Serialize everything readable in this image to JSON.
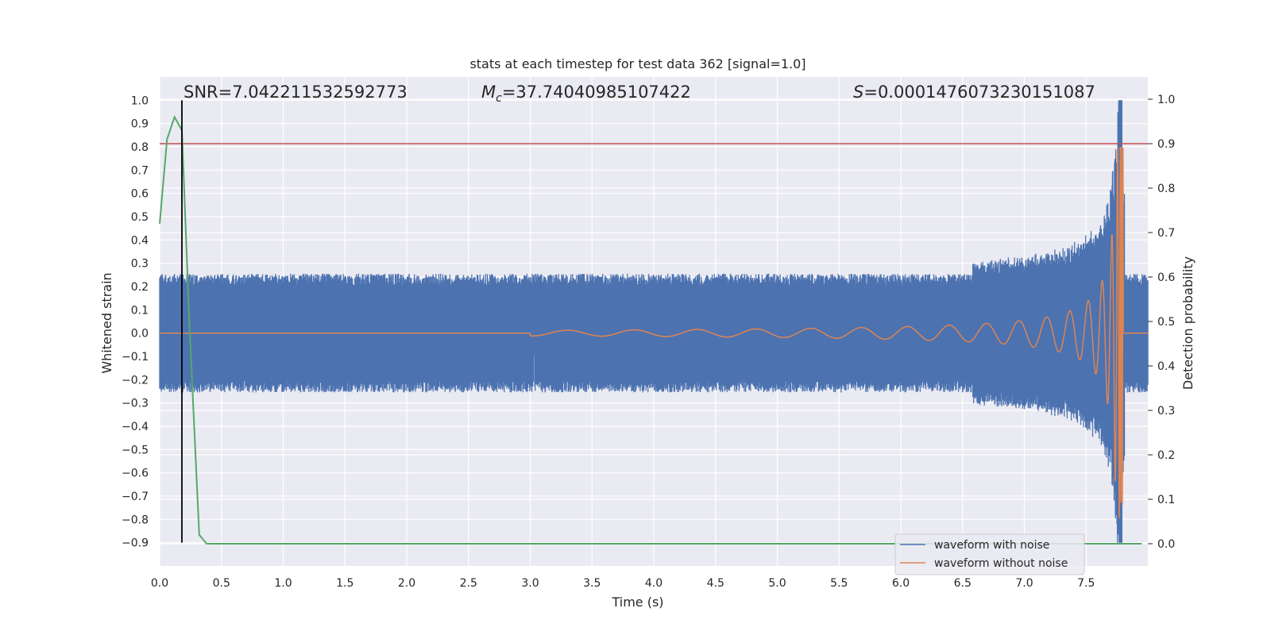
{
  "chart_data": {
    "type": "line",
    "title": "stats at each timestep for test data 362 [signal=1.0]",
    "xlabel": "Time (s)",
    "ylabel": "Whitened strain",
    "ylabel_right": "Detection probability",
    "xlim": [
      0.0,
      8.0
    ],
    "ylim": [
      -1.0,
      1.1
    ],
    "ylim_right": [
      -0.05,
      1.05
    ],
    "x_ticks": [
      "0.0",
      "0.5",
      "1.0",
      "1.5",
      "2.0",
      "2.5",
      "3.0",
      "3.5",
      "4.0",
      "4.5",
      "5.0",
      "5.5",
      "6.0",
      "6.5",
      "7.0",
      "7.5"
    ],
    "y_ticks": [
      "1.0",
      "0.9",
      "0.8",
      "0.7",
      "0.6",
      "0.5",
      "0.4",
      "0.3",
      "0.2",
      "0.1",
      "0.0",
      "−0.1",
      "−0.2",
      "−0.3",
      "−0.4",
      "−0.5",
      "−0.6",
      "−0.7",
      "−0.8",
      "−0.9"
    ],
    "y_ticks_right": [
      "1.0",
      "0.9",
      "0.8",
      "0.7",
      "0.6",
      "0.5",
      "0.4",
      "0.3",
      "0.2",
      "0.1",
      "0.0"
    ],
    "grid": true,
    "legend_position": "lower-right",
    "annotations": {
      "snr": "SNR=7.042211532592773",
      "mc_symbol": "M",
      "mc_sub": "c",
      "mc_value": "=37.74040985107422",
      "s_symbol": "S",
      "s_value": "=0.0001476073230151087"
    },
    "series": [
      {
        "name": "waveform with noise",
        "color": "#4c72b0",
        "axis": "left",
        "noise_band": [
          -0.25,
          0.25
        ],
        "merger_time": 7.78,
        "merger_peak": 1.0,
        "merger_trough": -0.9
      },
      {
        "name": "waveform without noise",
        "color": "#dd8452",
        "axis": "left",
        "chirp_start": 3.0,
        "merger_time": 7.78,
        "peak_amplitude": 0.8
      },
      {
        "name": "",
        "color": "#55a868",
        "axis": "right",
        "x": [
          0.0,
          0.06,
          0.12,
          0.18,
          0.24,
          0.32,
          0.38,
          0.5,
          1.0,
          2.0,
          3.0,
          4.0,
          5.0,
          6.0,
          7.0,
          7.95
        ],
        "y": [
          0.72,
          0.91,
          0.96,
          0.93,
          0.5,
          0.02,
          0.0,
          0.0,
          0.0,
          0.0,
          0.0,
          0.0,
          0.0,
          0.0,
          0.0,
          0.0
        ]
      }
    ],
    "threshold_line": {
      "axis": "right",
      "y": 0.9,
      "color": "#c44e52"
    },
    "marker_line": {
      "x": 0.18,
      "y_from": -0.9,
      "y_to": 1.0,
      "color": "#000000"
    }
  }
}
